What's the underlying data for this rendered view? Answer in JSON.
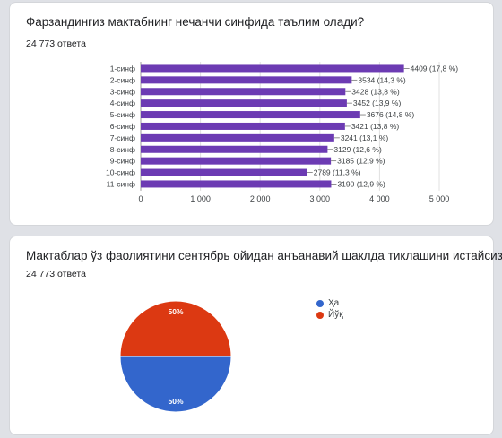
{
  "questions": [
    {
      "title": "Фарзандингиз мактабнинг нечанчи синфида таълим олади?",
      "responses": "24 773 ответа"
    },
    {
      "title": "Мактаблар ўз фаолиятини сентябрь ойидан анъанавий шаклда тиклашини истайсизми?",
      "responses": "24 773 ответа"
    }
  ],
  "colors": {
    "bar": "#6c3bb3",
    "yes": "#3366cc",
    "no": "#dc3912",
    "grid": "#e0e0e0"
  },
  "chart_data": [
    {
      "type": "bar",
      "orientation": "horizontal",
      "categories": [
        "1-синф",
        "2-синф",
        "3-синф",
        "4-синф",
        "5-синф",
        "6-синф",
        "7-синф",
        "8-синф",
        "9-синф",
        "10-синф",
        "11-синф"
      ],
      "values": [
        4409,
        3534,
        3428,
        3452,
        3676,
        3421,
        3241,
        3129,
        3185,
        2789,
        3190
      ],
      "data_labels": [
        "4409 (17,8 %)",
        "3534 (14,3 %)",
        "3428 (13,8 %)",
        "3452 (13,9 %)",
        "3676 (14,8 %)",
        "3421 (13,8 %)",
        "3241 (13,1 %)",
        "3129 (12,6 %)",
        "3185 (12,9 %)",
        "2789 (11,3 %)",
        "3190 (12,9 %)"
      ],
      "xlim": [
        0,
        5000
      ],
      "ticks": [
        "0",
        "1 000",
        "2 000",
        "3 000",
        "4 000",
        "5 000"
      ],
      "grid": true
    },
    {
      "type": "pie",
      "labels": [
        "Ҳа",
        "Йўқ"
      ],
      "values": [
        50,
        50
      ],
      "slice_labels": [
        "50%",
        "50%"
      ],
      "legend": "right"
    }
  ]
}
